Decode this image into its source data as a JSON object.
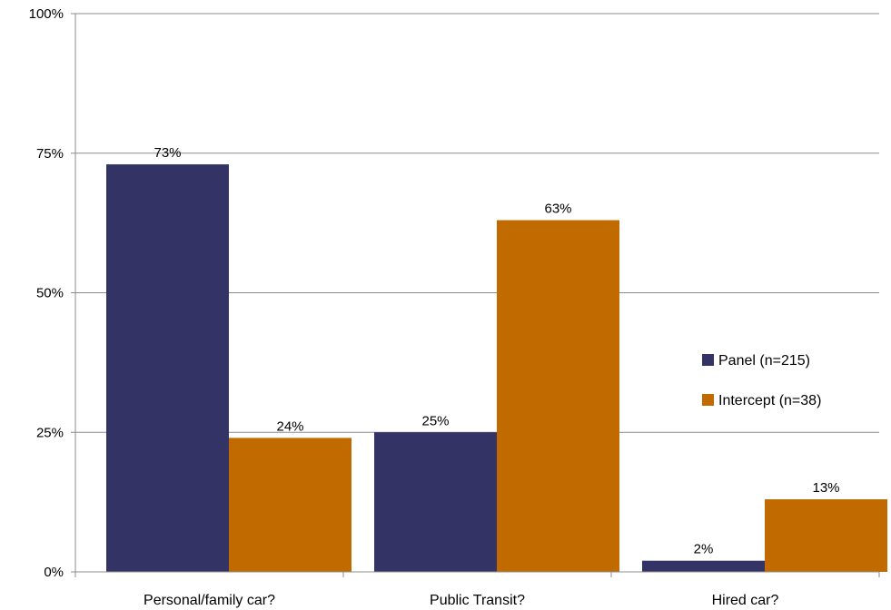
{
  "chart_data": {
    "type": "bar",
    "categories": [
      "Personal/family car?",
      "Public Transit?",
      "Hired car?"
    ],
    "series": [
      {
        "name": "Panel (n=215)",
        "values": [
          73,
          25,
          2
        ],
        "labels": [
          "73%",
          "25%",
          "2%"
        ],
        "color": "#333366"
      },
      {
        "name": "Intercept (n=38)",
        "values": [
          24,
          63,
          13
        ],
        "labels": [
          "24%",
          "63%",
          "13%"
        ],
        "color": "#C06A00"
      }
    ],
    "ylim": [
      0,
      100
    ],
    "yticks": [
      0,
      25,
      50,
      75,
      100
    ],
    "ytick_labels": [
      "0%",
      "25%",
      "50%",
      "75%",
      "100%"
    ],
    "grid": true,
    "legend_position": "right",
    "title": "",
    "xlabel": "",
    "ylabel": ""
  }
}
